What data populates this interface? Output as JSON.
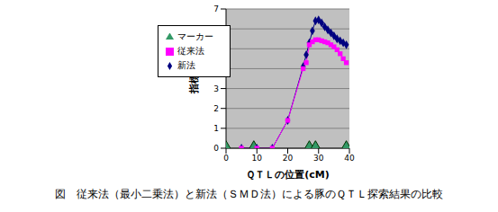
{
  "chart_data": {
    "type": "line",
    "title": "図　従来法（最小二乗法）と新法（ＳＭＤ法）による豚のＱＴＬ探索結果の比較",
    "x_label": "ＱＴＬの位置(cM)",
    "y_label": "指標値",
    "xlim": [
      0,
      40
    ],
    "xticks": [
      0,
      10,
      20,
      30,
      40
    ],
    "ylim": [
      0,
      7
    ],
    "yticks": [
      0,
      1,
      2,
      3,
      4,
      5,
      6,
      7
    ],
    "grid": true,
    "legend": "upper left",
    "series": [
      {
        "name": "新法",
        "type": "line",
        "color": "#000080",
        "marker": "diamond",
        "x": [
          5,
          10,
          15,
          20,
          25,
          26,
          27,
          28,
          29,
          30,
          31,
          32,
          33,
          34,
          35,
          36,
          37,
          38,
          39
        ],
        "values": [
          0,
          0,
          0,
          1.4,
          4.1,
          4.7,
          5.3,
          5.9,
          6.4,
          6.45,
          6.3,
          6.1,
          5.95,
          5.8,
          5.65,
          5.5,
          5.4,
          5.3,
          5.2
        ]
      },
      {
        "name": "従来法",
        "type": "line",
        "color": "#ff00ff",
        "marker": "square",
        "x": [
          5,
          10,
          15,
          20,
          25,
          26,
          27,
          28,
          29,
          30,
          31,
          32,
          33,
          34,
          35,
          36,
          37,
          38,
          39
        ],
        "values": [
          0,
          0,
          0,
          1.4,
          4.0,
          4.3,
          5.2,
          5.35,
          5.45,
          5.45,
          5.4,
          5.35,
          5.3,
          5.2,
          5.1,
          4.95,
          4.75,
          4.5,
          4.3
        ]
      },
      {
        "name": "マーカー",
        "type": "scatter",
        "color": "#339966",
        "marker": "triangle",
        "x": [
          0,
          9,
          27,
          29,
          39
        ],
        "values": [
          0,
          0,
          0,
          0,
          0
        ]
      }
    ]
  }
}
